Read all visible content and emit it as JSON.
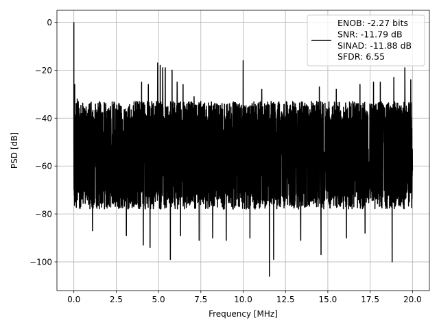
{
  "chart_data": {
    "type": "line",
    "title": "",
    "xlabel": "Frequency [MHz]",
    "ylabel": "PSD [dB]",
    "xlim": [
      -1,
      21
    ],
    "ylim": [
      -112,
      5
    ],
    "grid": true,
    "xticks": [
      0.0,
      2.5,
      5.0,
      7.5,
      10.0,
      12.5,
      15.0,
      17.5,
      20.0
    ],
    "xtick_labels": [
      "0.0",
      "2.5",
      "5.0",
      "7.5",
      "10.0",
      "12.5",
      "15.0",
      "17.5",
      "20.0"
    ],
    "yticks": [
      0,
      -20,
      -40,
      -60,
      -80,
      -100
    ],
    "ytick_labels": [
      "0",
      "−20",
      "−40",
      "−60",
      "−80",
      "−100"
    ],
    "legend_position": "top-right",
    "series": [
      {
        "name": "ENOB: -2.27 bits",
        "color": "#000000",
        "x_range": [
          0,
          20
        ],
        "noise_band": [
          -78,
          -33
        ],
        "dc_spike": {
          "x": 0,
          "y": 0
        },
        "spurs": [
          {
            "x": 0.05,
            "y": -26
          },
          {
            "x": 0.2,
            "y": -32
          },
          {
            "x": 4.0,
            "y": -25
          },
          {
            "x": 4.4,
            "y": -26
          },
          {
            "x": 4.95,
            "y": -17
          },
          {
            "x": 5.1,
            "y": -18
          },
          {
            "x": 5.25,
            "y": -19
          },
          {
            "x": 5.4,
            "y": -19
          },
          {
            "x": 5.8,
            "y": -20
          },
          {
            "x": 6.1,
            "y": -25
          },
          {
            "x": 6.45,
            "y": -26
          },
          {
            "x": 7.1,
            "y": -31
          },
          {
            "x": 10.0,
            "y": -16
          },
          {
            "x": 11.1,
            "y": -28
          },
          {
            "x": 13.4,
            "y": -27
          },
          {
            "x": 14.5,
            "y": -27
          },
          {
            "x": 15.5,
            "y": -28
          },
          {
            "x": 16.9,
            "y": -26
          },
          {
            "x": 17.7,
            "y": -25
          },
          {
            "x": 18.1,
            "y": -25
          },
          {
            "x": 18.9,
            "y": -23
          },
          {
            "x": 19.55,
            "y": -19
          },
          {
            "x": 19.9,
            "y": -24
          }
        ],
        "dips": [
          {
            "x": 1.1,
            "y": -87
          },
          {
            "x": 3.1,
            "y": -89
          },
          {
            "x": 4.1,
            "y": -93
          },
          {
            "x": 4.5,
            "y": -94
          },
          {
            "x": 5.7,
            "y": -99
          },
          {
            "x": 6.3,
            "y": -89
          },
          {
            "x": 7.4,
            "y": -91
          },
          {
            "x": 8.2,
            "y": -90
          },
          {
            "x": 9.0,
            "y": -91
          },
          {
            "x": 10.4,
            "y": -90
          },
          {
            "x": 11.55,
            "y": -106
          },
          {
            "x": 11.8,
            "y": -99
          },
          {
            "x": 13.4,
            "y": -91
          },
          {
            "x": 14.6,
            "y": -97
          },
          {
            "x": 16.1,
            "y": -90
          },
          {
            "x": 17.2,
            "y": -88
          },
          {
            "x": 18.8,
            "y": -100
          }
        ]
      }
    ],
    "legend_lines": [
      "ENOB: -2.27 bits",
      "SNR: -11.79 dB",
      "SINAD: -11.88 dB",
      "SFDR: 6.55"
    ]
  }
}
